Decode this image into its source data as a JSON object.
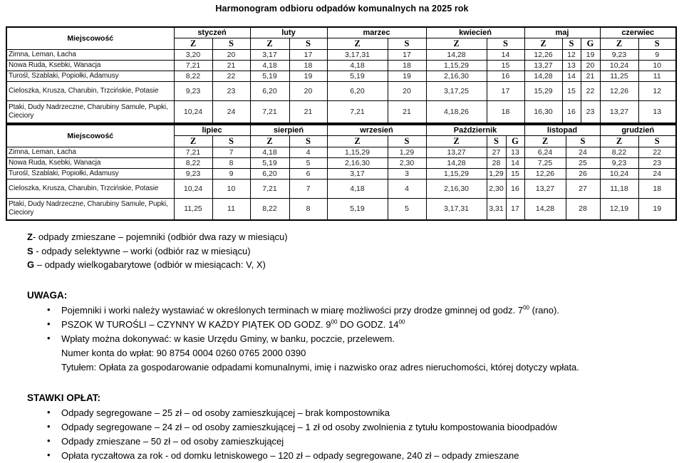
{
  "title": "Harmonogram odbioru odpadów komunalnych na 2025 rok",
  "tables": [
    {
      "col_header": "Miejscowość",
      "months": [
        {
          "name": "styczeń",
          "cols": [
            "Z",
            "S"
          ]
        },
        {
          "name": "luty",
          "cols": [
            "Z",
            "S"
          ]
        },
        {
          "name": "marzec",
          "cols": [
            "Z",
            "S"
          ]
        },
        {
          "name": "kwiecień",
          "cols": [
            "Z",
            "S"
          ]
        },
        {
          "name": "maj",
          "cols": [
            "Z",
            "S",
            "G"
          ]
        },
        {
          "name": "czerwiec",
          "cols": [
            "Z",
            "S"
          ]
        }
      ],
      "rows": [
        {
          "place": "Zimna, Leman, Łacha",
          "cells": [
            "3,20",
            "20",
            "3,17",
            "17",
            "3,17,31",
            "17",
            "14,28",
            "14",
            "12,26",
            "12",
            "19",
            "9,23",
            "9"
          ]
        },
        {
          "place": "Nowa Ruda, Ksebki, Wanacja",
          "cells": [
            "7,21",
            "21",
            "4,18",
            "18",
            "4,18",
            "18",
            "1,15,29",
            "15",
            "13,27",
            "13",
            "20",
            "10,24",
            "10"
          ]
        },
        {
          "place": "Turośl, Szablaki, Popiołki, Adamusy",
          "cells": [
            "8,22",
            "22",
            "5,19",
            "19",
            "5,19",
            "19",
            "2,16,30",
            "16",
            "14,28",
            "14",
            "21",
            "11,25",
            "11"
          ]
        },
        {
          "place": "Cieloszka, Krusza, Charubin, Trzcińskie, Potasie",
          "cells": [
            "9,23",
            "23",
            "6,20",
            "20",
            "6,20",
            "20",
            "3,17,25",
            "17",
            "15,29",
            "15",
            "22",
            "12,26",
            "12"
          ]
        },
        {
          "place": "Ptaki, Dudy Nadrzeczne, Charubiny Samule, Pupki, Cieciory",
          "cells": [
            "10,24",
            "24",
            "7,21",
            "21",
            "7,21",
            "21",
            "4,18,26",
            "18",
            "16,30",
            "16",
            "23",
            "13,27",
            "13"
          ]
        }
      ]
    },
    {
      "col_header": "Miejscowość",
      "months": [
        {
          "name": "lipiec",
          "cols": [
            "Z",
            "S"
          ]
        },
        {
          "name": "sierpień",
          "cols": [
            "Z",
            "S"
          ]
        },
        {
          "name": "wrzesień",
          "cols": [
            "Z",
            "S"
          ]
        },
        {
          "name": "Październik",
          "cols": [
            "Z",
            "S",
            "G"
          ]
        },
        {
          "name": "listopad",
          "cols": [
            "Z",
            "S"
          ]
        },
        {
          "name": "grudzień",
          "cols": [
            "Z",
            "S"
          ]
        }
      ],
      "rows": [
        {
          "place": "Zimna, Leman, Łacha",
          "cells": [
            "7,21",
            "7",
            "4,18",
            "4",
            "1,15,29",
            "1,29",
            "13,27",
            "27",
            "13",
            "6,24",
            "24",
            "8,22",
            "22"
          ]
        },
        {
          "place": "Nowa Ruda, Ksebki, Wanacja",
          "cells": [
            "8,22",
            "8",
            "5,19",
            "5",
            "2,16,30",
            "2,30",
            "14,28",
            "28",
            "14",
            "7,25",
            "25",
            "9,23",
            "23"
          ]
        },
        {
          "place": "Turośl, Szablaki, Popiołki, Adamusy",
          "cells": [
            "9,23",
            "9",
            "6,20",
            "6",
            "3,17",
            "3",
            "1,15,29",
            "1,29",
            "15",
            "12,26",
            "26",
            "10,24",
            "24"
          ]
        },
        {
          "place": "Cieloszka, Krusza, Charubin, Trzcińskie, Potasie",
          "cells": [
            "10,24",
            "10",
            "7,21",
            "7",
            "4,18",
            "4",
            "2,16,30",
            "2,30",
            "16",
            "13,27",
            "27",
            "11,18",
            "18"
          ]
        },
        {
          "place": "Ptaki, Dudy Nadrzeczne, Charubiny Samule, Pupki, Cieciory",
          "cells": [
            "11,25",
            "11",
            "8,22",
            "8",
            "5,19",
            "5",
            "3,17,31",
            "3,31",
            "17",
            "14,28",
            "28",
            "12,19",
            "19"
          ]
        }
      ]
    }
  ],
  "legend": [
    {
      "key": "Z",
      "text": "- odpady zmieszane – pojemniki (odbiór dwa razy w miesiącu)"
    },
    {
      "key": "S",
      "text": " - odpady selektywne – worki (odbiór  raz w miesiącu)"
    },
    {
      "key": "G",
      "text": " – odpady wielkogabarytowe (odbiór w miesiącach: V, X)"
    }
  ],
  "uwaga": {
    "heading": "UWAGA:",
    "items": [
      {
        "bullet": true,
        "parts": [
          {
            "t": "Pojemniki i worki należy wystawiać w określonych terminach w miarę możliwości przy drodze gminnej od godz. 7"
          },
          {
            "sup": "00"
          },
          {
            "t": " (rano)."
          }
        ]
      },
      {
        "bullet": true,
        "parts": [
          {
            "t": "PSZOK W TUROŚLI – CZYNNY W KAŻDY PIĄTEK OD GODZ. 9"
          },
          {
            "sup": "00"
          },
          {
            "t": " DO GODZ. 14"
          },
          {
            "sup": "00"
          }
        ]
      },
      {
        "bullet": true,
        "parts": [
          {
            "t": "Wpłaty można dokonywać: w kasie Urzędu Gminy, w banku, poczcie, przelewem."
          }
        ]
      },
      {
        "bullet": false,
        "parts": [
          {
            "t": "Numer konta do wpłat: 90 8754 0004 0260 0765 2000 0390"
          }
        ]
      },
      {
        "bullet": false,
        "parts": [
          {
            "t": "Tytułem: Opłata za gospodarowanie odpadami komunalnymi, imię i nazwisko oraz adres nieruchomości, której dotyczy wpłata."
          }
        ]
      }
    ]
  },
  "stawki": {
    "heading": "STAWKI OPŁAT:",
    "items": [
      {
        "bullet": true,
        "parts": [
          {
            "t": "Odpady segregowane – 25 zł – od osoby zamieszkującej – brak kompostownika"
          }
        ]
      },
      {
        "bullet": true,
        "parts": [
          {
            "t": "Odpady segregowane – 24 zł – od osoby zamieszkującej – 1 zł od osoby zwolnienia z tytułu kompostowania bioodpadów"
          }
        ]
      },
      {
        "bullet": true,
        "parts": [
          {
            "t": "Odpady zmieszane – 50 zł – od osoby zamieszkującej"
          }
        ]
      },
      {
        "bullet": true,
        "parts": [
          {
            "t": "Opłata ryczałtowa za rok - od domku letniskowego – 120 zł – odpady segregowane, 240 zł – odpady zmieszane"
          }
        ]
      }
    ]
  }
}
